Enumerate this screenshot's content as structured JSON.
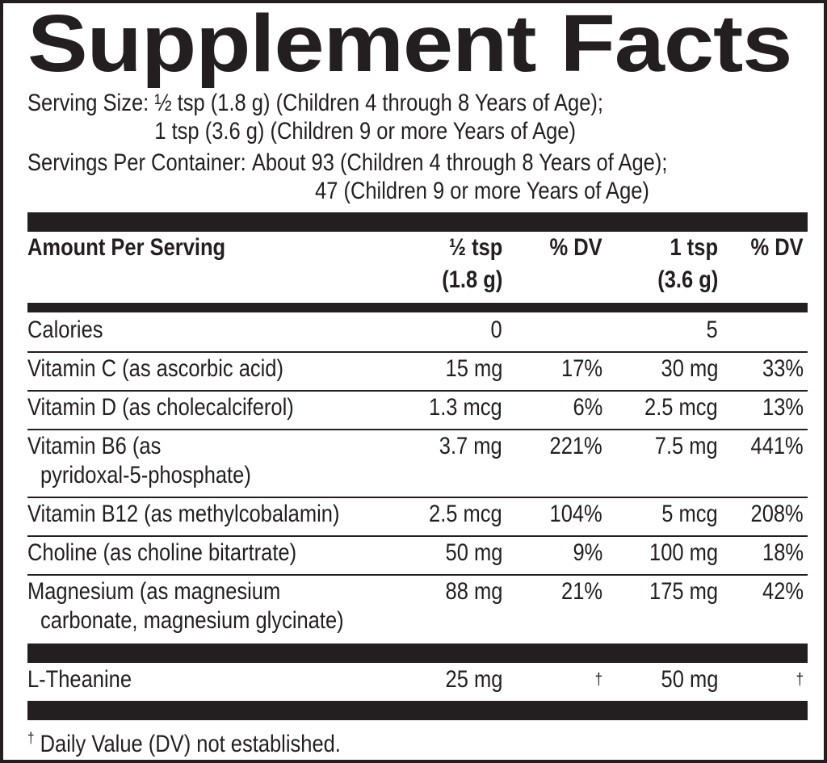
{
  "title": "Supplement Facts",
  "serving_size": {
    "label": "Serving Size:",
    "lines": [
      "½ tsp (1.8 g) (Children 4 through 8 Years of Age);",
      "1 tsp (3.6 g) (Children 9 or more Years of Age)"
    ]
  },
  "servings_per_container": {
    "label": "Servings Per Container:",
    "lines": [
      "About 93 (Children 4 through 8 Years of Age);",
      "47 (Children 9 or more Years of Age)"
    ]
  },
  "table": {
    "header": [
      [
        "Amount Per Serving"
      ],
      [
        "½ tsp",
        "(1.8 g)"
      ],
      [
        "% DV"
      ],
      [
        "1 tsp",
        "(3.6 g)"
      ],
      [
        "% DV"
      ]
    ],
    "sections": [
      {
        "rows": [
          [
            [
              "Calories"
            ],
            "0",
            null,
            "5",
            null
          ],
          [
            [
              "Vitamin C (as ascorbic acid)"
            ],
            "15 mg",
            "17%",
            "30 mg",
            "33%"
          ],
          [
            [
              "Vitamin D (as cholecalciferol)"
            ],
            "1.3 mcg",
            "6%",
            "2.5 mcg",
            "13%"
          ],
          [
            [
              "Vitamin B6 (as",
              "pyridoxal-5-phosphate)"
            ],
            "3.7 mg",
            "221%",
            "7.5 mg",
            "441%"
          ],
          [
            [
              "Vitamin B12 (as methylcobalamin)"
            ],
            "2.5 mcg",
            "104%",
            "5 mcg",
            "208%"
          ],
          [
            [
              "Choline (as choline bitartrate)"
            ],
            "50 mg",
            "9%",
            "100 mg",
            "18%"
          ],
          [
            [
              "Magnesium (as magnesium",
              "carbonate, magnesium glycinate)"
            ],
            "88 mg",
            "21%",
            "175 mg",
            "42%"
          ]
        ]
      },
      {
        "rows": [
          [
            [
              "L-Theanine"
            ],
            "25 mg",
            "†",
            "50 mg",
            "†"
          ]
        ]
      }
    ]
  },
  "footnote": {
    "symbol": "†",
    "text": "Daily Value (DV) not established."
  }
}
